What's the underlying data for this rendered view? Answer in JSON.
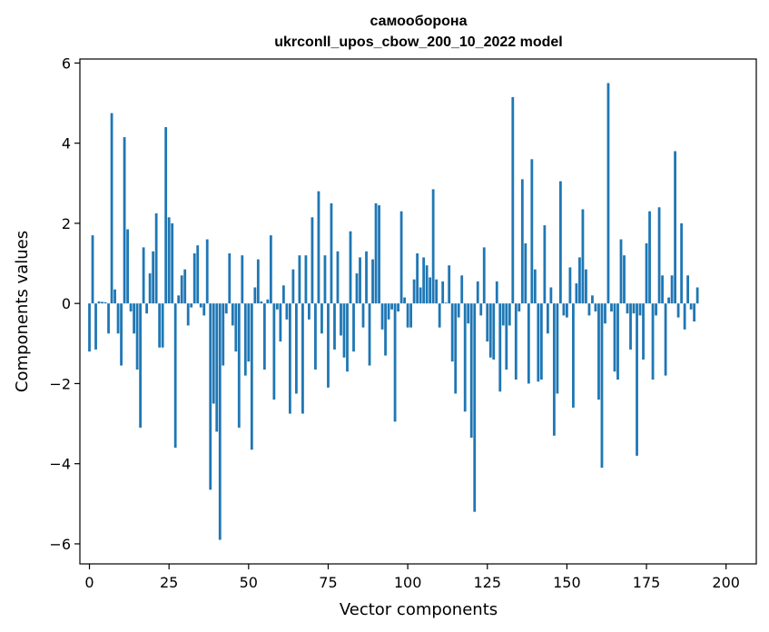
{
  "chart_data": {
    "type": "bar",
    "title": "самооборона",
    "subtitle": "ukrconll_upos_cbow_200_10_2022 model",
    "xlabel": "Vector components",
    "ylabel": "Components values",
    "xlim": [
      -3,
      209.5
    ],
    "ylim": [
      -6.5,
      6.1
    ],
    "xticks": [
      0,
      25,
      50,
      75,
      100,
      125,
      150,
      175,
      200
    ],
    "yticks": [
      -6,
      -4,
      -2,
      0,
      2,
      4,
      6
    ],
    "ytick_labels": [
      "−6",
      "−4",
      "−2",
      "0",
      "2",
      "4",
      "6"
    ],
    "bar_color": "#1f77b4",
    "grid": false,
    "values": [
      -1.2,
      1.7,
      -1.15,
      0.05,
      0.04,
      0.03,
      -0.75,
      4.75,
      0.35,
      -0.75,
      -1.55,
      4.15,
      1.85,
      -0.2,
      -0.75,
      -1.65,
      -3.1,
      1.4,
      -0.25,
      0.75,
      1.3,
      2.25,
      -1.1,
      -1.1,
      4.4,
      2.15,
      2.0,
      -3.6,
      0.2,
      0.7,
      0.85,
      -0.55,
      -0.1,
      1.25,
      1.45,
      -0.1,
      -0.3,
      1.6,
      -4.65,
      -2.5,
      -3.2,
      -5.9,
      -1.55,
      -0.25,
      1.25,
      -0.55,
      -1.2,
      -3.1,
      1.2,
      -1.8,
      -1.45,
      -3.65,
      0.4,
      1.1,
      0.05,
      -1.65,
      0.1,
      1.7,
      -2.4,
      -0.15,
      -0.95,
      0.45,
      -0.4,
      -2.75,
      0.85,
      -2.25,
      1.2,
      -2.75,
      1.2,
      -0.4,
      2.15,
      -1.65,
      2.8,
      -0.75,
      1.2,
      -2.1,
      2.5,
      -1.15,
      1.3,
      -0.8,
      -1.35,
      -1.7,
      1.8,
      -1.2,
      0.75,
      1.15,
      -0.6,
      1.3,
      -1.55,
      1.1,
      2.5,
      2.45,
      -0.65,
      -1.3,
      -0.4,
      -0.15,
      -2.95,
      -0.2,
      2.3,
      0.15,
      -0.6,
      -0.6,
      0.6,
      1.25,
      0.4,
      1.15,
      0.95,
      0.65,
      2.85,
      0.6,
      -0.6,
      0.55,
      0.02,
      0.95,
      -1.45,
      -2.25,
      -0.35,
      0.7,
      -2.7,
      -0.5,
      -3.35,
      -5.2,
      0.55,
      -0.3,
      1.4,
      -0.95,
      -1.35,
      -1.4,
      0.55,
      -2.2,
      -0.55,
      -1.65,
      -0.55,
      5.15,
      -1.9,
      -0.2,
      3.1,
      1.5,
      -2.0,
      3.6,
      0.85,
      -1.95,
      -1.9,
      1.95,
      -0.75,
      0.4,
      -3.3,
      -2.25,
      3.05,
      -0.3,
      -0.35,
      0.9,
      -2.6,
      0.5,
      1.15,
      2.35,
      0.85,
      -0.3,
      0.2,
      -0.2,
      -2.4,
      -4.1,
      -0.5,
      5.5,
      -0.2,
      -1.7,
      -1.9,
      1.6,
      1.2,
      -0.25,
      -1.15,
      -0.25,
      -3.8,
      -0.3,
      -1.4,
      1.5,
      2.3,
      -1.9,
      -0.3,
      2.4,
      0.7,
      -1.8,
      0.15,
      0.7,
      3.8,
      -0.35,
      2.0,
      -0.65,
      0.7,
      -0.15,
      -0.45,
      0.4
    ]
  }
}
